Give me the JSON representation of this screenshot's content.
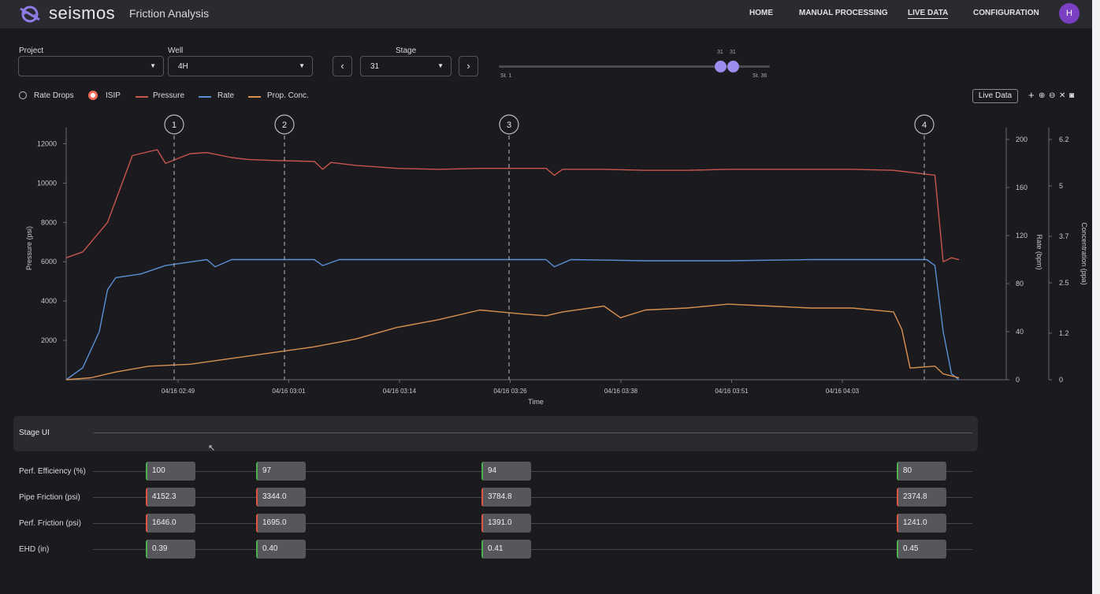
{
  "header": {
    "brand": "seismos",
    "app_title": "Friction Analysis",
    "nav": [
      "HOME",
      "MANUAL PROCESSING",
      "LIVE DATA",
      "CONFIGURATION"
    ],
    "active_nav": "LIVE DATA",
    "avatar_initial": "H"
  },
  "filters": {
    "project_label": "Project",
    "project_value": "",
    "well_label": "Well",
    "well_value": "4H",
    "stage_label": "Stage",
    "stage_value": "31",
    "prev_icon": "‹",
    "next_icon": "›",
    "slider": {
      "low": "31",
      "high": "31",
      "min_label": "St. 1",
      "max_label": "St. 36",
      "min": 1,
      "max": 36,
      "selected_low": 31,
      "selected_high": 31
    }
  },
  "legend": {
    "rate_drops": "Rate Drops",
    "isip": "ISIP",
    "pressure": "Pressure",
    "rate": "Rate",
    "prop_conc": "Prop. Conc."
  },
  "toolbar": {
    "live_data": "Live Data",
    "icons": [
      "plus-icon",
      "zoom-in-icon",
      "zoom-out-icon",
      "reset-icon",
      "camera-icon"
    ]
  },
  "colors": {
    "pressure": "#c8554e",
    "rate": "#5b8fd6",
    "prop": "#d9904f",
    "accent": "#9b8cf0",
    "green": "#4caf50",
    "red": "#e05545"
  },
  "chart_data": {
    "type": "line",
    "xlabel": "Time",
    "ylabel_left": "Pressure (psi)",
    "ylabel_right1": "Rate (bpm)",
    "ylabel_right2": "Concentration (ppa)",
    "x_ticks": [
      "04/16 02:49",
      "04/16 03:01",
      "04/16 03:14",
      "04/16 03:26",
      "04/16 03:38",
      "04/16 03:51",
      "04/16 04:03"
    ],
    "y_left_ticks": [
      "12000",
      "10000",
      "8000",
      "6000",
      "4000",
      "2000"
    ],
    "y_left_range": [
      0,
      12500
    ],
    "y_right1_ticks": [
      "200",
      "160",
      "120",
      "80",
      "40",
      "0"
    ],
    "y_right1_range": [
      0,
      200
    ],
    "y_right2_ticks": [
      "6.2",
      "5",
      "3.7",
      "2.5",
      "1.2",
      "0"
    ],
    "y_right2_range": [
      0,
      6.2
    ],
    "markers": [
      "1",
      "2",
      "3",
      "4"
    ],
    "marker_x": [
      0.176,
      0.31,
      0.584,
      1.04
    ],
    "series": [
      {
        "name": "Pressure",
        "x": [
          0,
          0.02,
          0.05,
          0.08,
          0.11,
          0.12,
          0.15,
          0.17,
          0.2,
          0.22,
          0.25,
          0.3,
          0.31,
          0.32,
          0.35,
          0.4,
          0.45,
          0.5,
          0.58,
          0.59,
          0.6,
          0.65,
          0.7,
          0.75,
          0.8,
          0.85,
          0.9,
          0.95,
          1.0,
          1.03,
          1.05,
          1.06,
          1.07,
          1.08,
          1.1,
          1.12
        ],
        "values": [
          6200,
          6500,
          8000,
          11400,
          11700,
          11000,
          11500,
          11550,
          11300,
          11200,
          11150,
          11100,
          10700,
          11050,
          10900,
          10750,
          10700,
          10750,
          10750,
          10400,
          10700,
          10700,
          10650,
          10650,
          10700,
          10700,
          10700,
          10700,
          10650,
          10500,
          10400,
          6000,
          6200,
          6100,
          6100,
          6100
        ]
      },
      {
        "name": "Rate",
        "x": [
          0,
          0.02,
          0.04,
          0.05,
          0.06,
          0.09,
          0.12,
          0.17,
          0.18,
          0.2,
          0.3,
          0.31,
          0.33,
          0.4,
          0.5,
          0.58,
          0.59,
          0.61,
          0.7,
          0.8,
          0.9,
          1.0,
          1.04,
          1.05,
          1.06,
          1.07,
          1.08
        ],
        "values": [
          0,
          10,
          40,
          75,
          85,
          88,
          95,
          100,
          94,
          100,
          100,
          95,
          100,
          100,
          100,
          100,
          94,
          100,
          99,
          99,
          100,
          100,
          100,
          95,
          40,
          5,
          0
        ]
      },
      {
        "name": "Prop. Conc.",
        "x": [
          0,
          0.03,
          0.06,
          0.1,
          0.15,
          0.2,
          0.25,
          0.3,
          0.35,
          0.4,
          0.45,
          0.5,
          0.55,
          0.58,
          0.6,
          0.65,
          0.67,
          0.7,
          0.75,
          0.8,
          0.85,
          0.9,
          0.95,
          1.0,
          1.01,
          1.02,
          1.05,
          1.06,
          1.08
        ],
        "values": [
          0,
          0.05,
          0.2,
          0.35,
          0.4,
          0.55,
          0.7,
          0.85,
          1.05,
          1.35,
          1.55,
          1.8,
          1.7,
          1.65,
          1.75,
          1.9,
          1.6,
          1.8,
          1.85,
          1.95,
          1.9,
          1.85,
          1.85,
          1.75,
          1.3,
          0.3,
          0.35,
          0.15,
          0.05
        ]
      }
    ]
  },
  "stage_ui": {
    "title": "Stage UI"
  },
  "metrics": {
    "rows": [
      {
        "label": "Perf. Efficiency (%)",
        "values": [
          "100",
          "97",
          "94",
          "80"
        ],
        "flags": [
          "green",
          "green",
          "green",
          "green"
        ]
      },
      {
        "label": "Pipe Friction (psi)",
        "values": [
          "4152.3",
          "3344.0",
          "3784.8",
          "2374.8"
        ],
        "flags": [
          "red",
          "red",
          "red",
          "red"
        ]
      },
      {
        "label": "Perf. Friction (psi)",
        "values": [
          "1646.0",
          "1695.0",
          "1391.0",
          "1241.0"
        ],
        "flags": [
          "red",
          "red",
          "red",
          "red"
        ]
      },
      {
        "label": "EHD (in)",
        "values": [
          "0.39",
          "0.40",
          "0.41",
          "0.45"
        ],
        "flags": [
          "green",
          "green",
          "green",
          "green"
        ]
      }
    ]
  }
}
